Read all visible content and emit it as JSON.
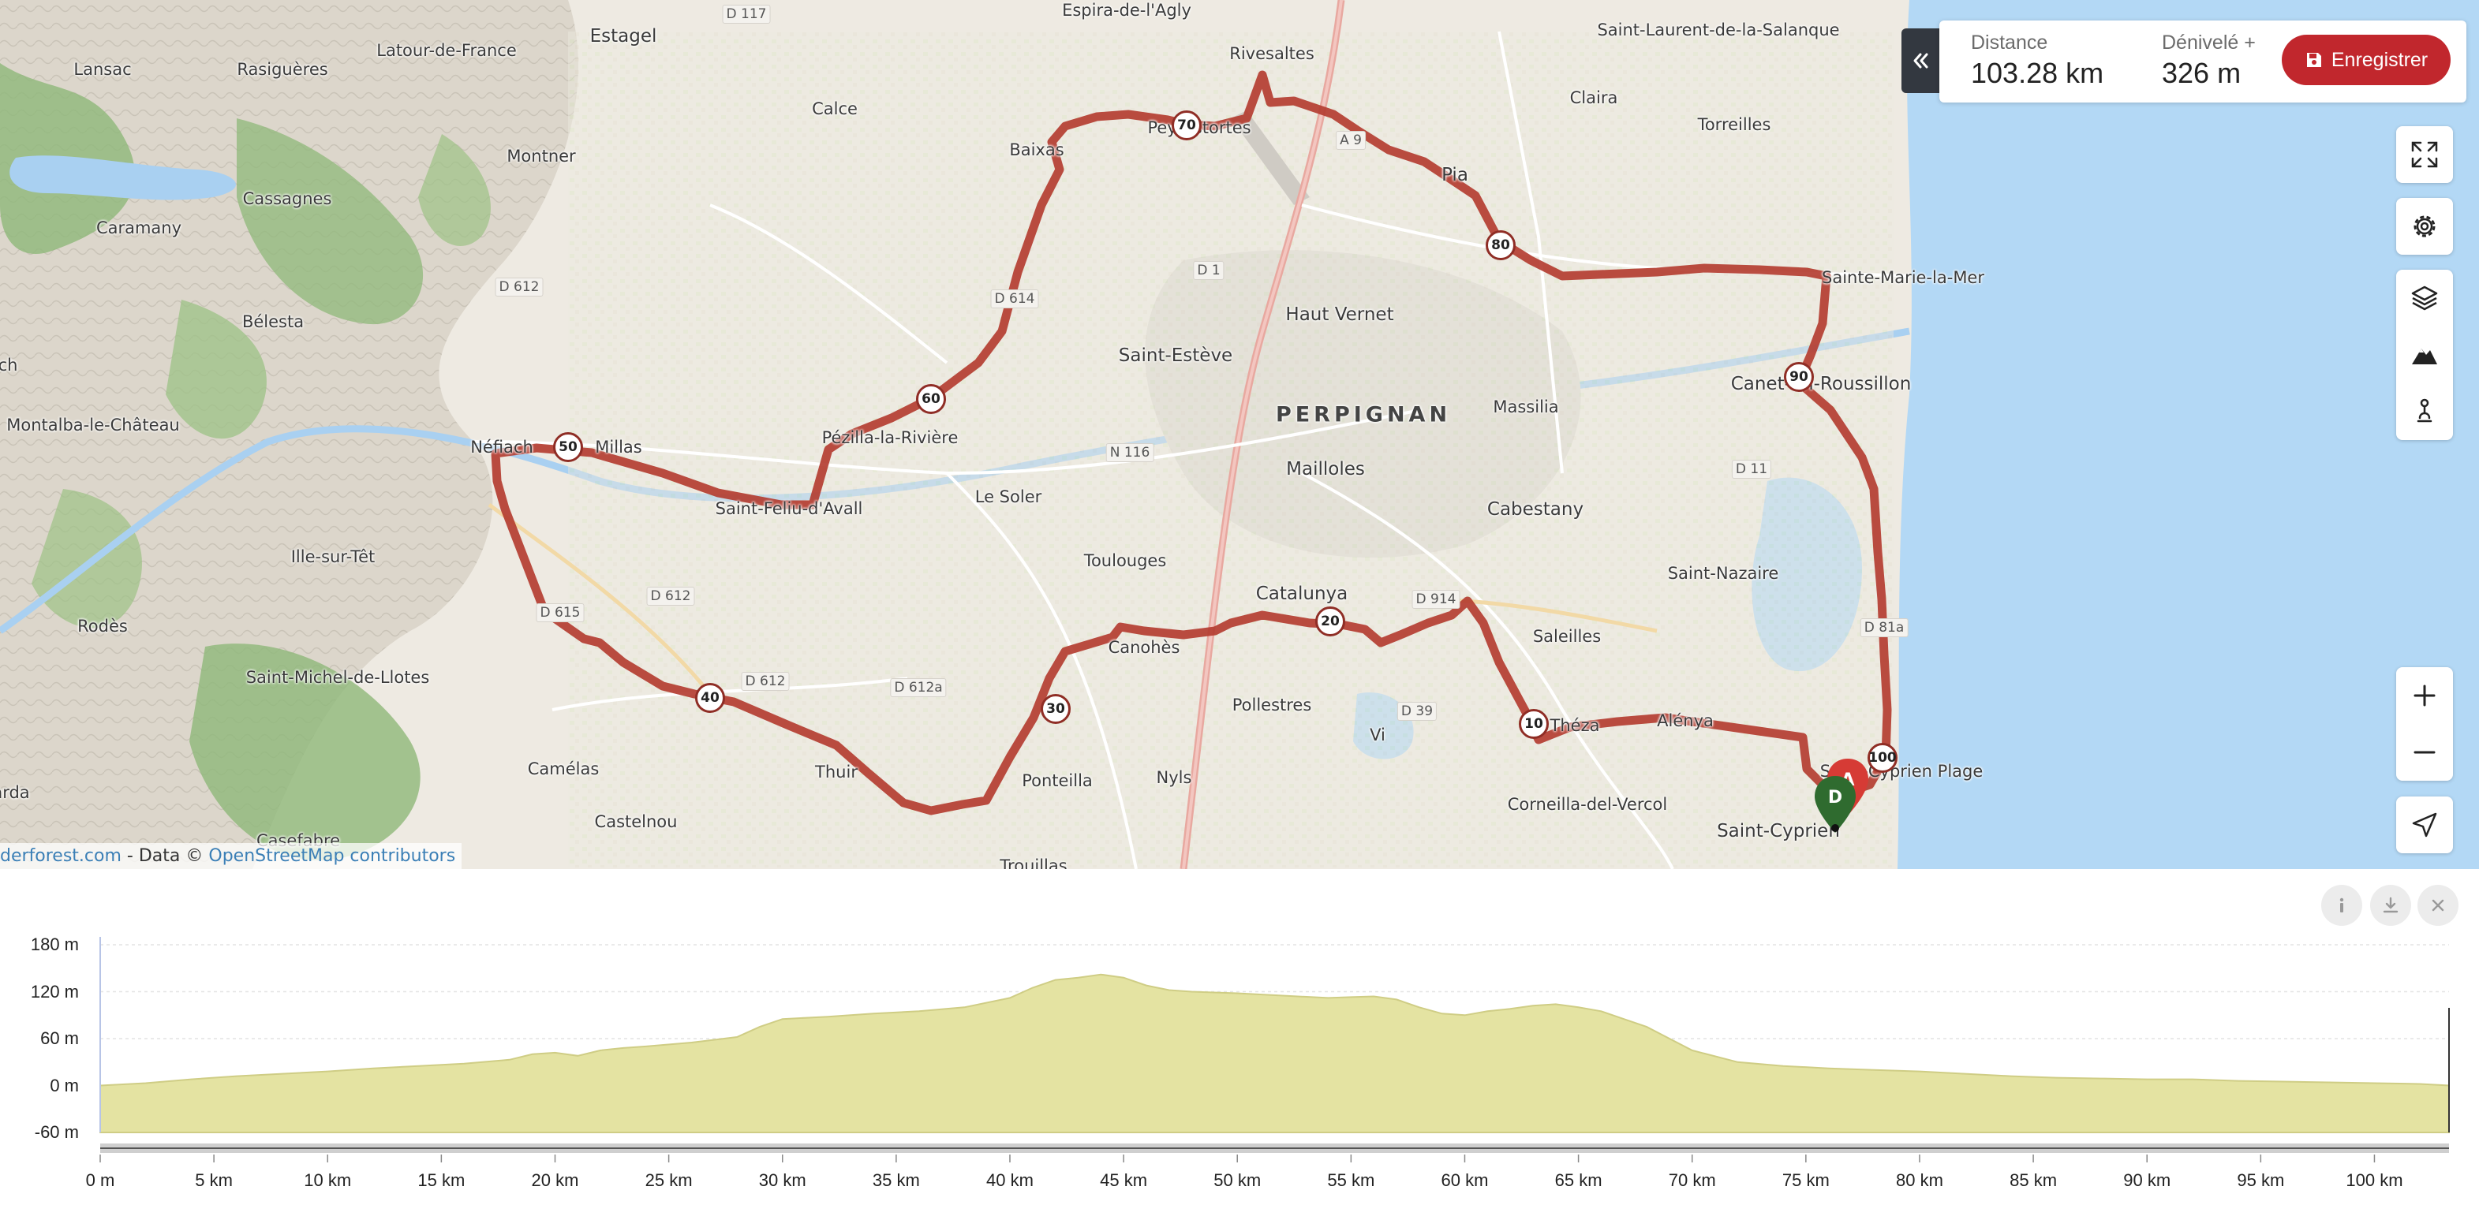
{
  "map": {
    "attribution_prefix": "derforest.com",
    "attribution_middle": " - Data © ",
    "attribution_link": "OpenStreetMap contributors",
    "places": [
      {
        "name": "Estagel",
        "cls": "mid"
      },
      {
        "name": "Latour-de-France",
        "cls": ""
      },
      {
        "name": "Lansac",
        "cls": ""
      },
      {
        "name": "Rasiguères",
        "cls": ""
      },
      {
        "name": "Montner",
        "cls": ""
      },
      {
        "name": "Calce",
        "cls": ""
      },
      {
        "name": "Espira-de-l'Agly",
        "cls": ""
      },
      {
        "name": "Rivesaltes",
        "cls": ""
      },
      {
        "name": "Saint-Laurent-de-la-Salanque",
        "cls": ""
      },
      {
        "name": "Claira",
        "cls": ""
      },
      {
        "name": "Torreilles",
        "cls": ""
      },
      {
        "name": "Cassagnes",
        "cls": ""
      },
      {
        "name": "Caramany",
        "cls": ""
      },
      {
        "name": "Baixas",
        "cls": ""
      },
      {
        "name": "Peyrestortes",
        "cls": ""
      },
      {
        "name": "Pia",
        "cls": "mid"
      },
      {
        "name": "Bélesta",
        "cls": ""
      },
      {
        "name": "Haut Vernet",
        "cls": "mid"
      },
      {
        "name": "Sainte-Marie-la-Mer",
        "cls": ""
      },
      {
        "name": "Saint-Estève",
        "cls": "mid"
      },
      {
        "name": "Canet-en-Roussillon",
        "cls": "mid"
      },
      {
        "name": "Massilia",
        "cls": ""
      },
      {
        "name": "PERPIGNAN",
        "cls": "city"
      },
      {
        "name": "Montalba-le-Château",
        "cls": ""
      },
      {
        "name": "Néfiach",
        "cls": ""
      },
      {
        "name": "Millas",
        "cls": ""
      },
      {
        "name": "Pézilla-la-Rivière",
        "cls": ""
      },
      {
        "name": "Mailloles",
        "cls": "mid"
      },
      {
        "name": "Saint-Feliu-d'Avall",
        "cls": ""
      },
      {
        "name": "Le Soler",
        "cls": ""
      },
      {
        "name": "Cabestany",
        "cls": "mid"
      },
      {
        "name": "Ille-sur-Têt",
        "cls": ""
      },
      {
        "name": "Toulouges",
        "cls": ""
      },
      {
        "name": "Saint-Nazaire",
        "cls": ""
      },
      {
        "name": "Catalunya",
        "cls": "mid"
      },
      {
        "name": "Rodès",
        "cls": ""
      },
      {
        "name": "Saleilles",
        "cls": ""
      },
      {
        "name": "Canohès",
        "cls": ""
      },
      {
        "name": "Saint-Michel-de-Llotes",
        "cls": ""
      },
      {
        "name": "Pollestres",
        "cls": ""
      },
      {
        "name": "Théza",
        "cls": ""
      },
      {
        "name": "Alénya",
        "cls": ""
      },
      {
        "name": "Vi",
        "cls": ""
      },
      {
        "name": "Camélas",
        "cls": ""
      },
      {
        "name": "Thuir",
        "cls": ""
      },
      {
        "name": "Ponteilla",
        "cls": ""
      },
      {
        "name": "Nyls",
        "cls": ""
      },
      {
        "name": "Saint-Cyprien Plage",
        "cls": ""
      },
      {
        "name": "Corneilla-del-Vercol",
        "cls": ""
      },
      {
        "name": "Saint-Cyprien",
        "cls": "mid"
      },
      {
        "name": "Castelnou",
        "cls": ""
      },
      {
        "name": "Casefabre",
        "cls": ""
      },
      {
        "name": "arda",
        "cls": ""
      },
      {
        "name": "ch",
        "cls": ""
      },
      {
        "name": "Trouillas",
        "cls": ""
      }
    ],
    "roads": [
      "D 117",
      "D 612",
      "A 9",
      "D 1",
      "D 614",
      "N 116",
      "D 612a",
      "D 612",
      "D 914",
      "D 11",
      "D 81a",
      "D 39",
      "D 615",
      "D 612"
    ],
    "km_markers": [
      "10",
      "20",
      "30",
      "40",
      "50",
      "60",
      "70",
      "80",
      "90",
      "100"
    ],
    "start_marker": "A",
    "end_marker": "D"
  },
  "stats": {
    "distance_label": "Distance",
    "distance_value": "103.28 km",
    "elevation_label": "Dénivelé +",
    "elevation_value": "326 m",
    "save_label": "Enregistrer"
  },
  "controls": [
    "fullscreen-icon",
    "gear-icon",
    "layers-icon",
    "mountain-icon",
    "hiker-icon",
    "plus-icon",
    "minus-icon",
    "locate-icon"
  ],
  "chart_data": {
    "type": "area",
    "title": "",
    "xlabel": "",
    "ylabel": "",
    "y_ticks": [
      "180 m",
      "120 m",
      "60 m",
      "0 m",
      "-60 m"
    ],
    "x_ticks": [
      "0 m",
      "5 km",
      "10 km",
      "15 km",
      "20 km",
      "25 km",
      "30 km",
      "35 km",
      "40 km",
      "45 km",
      "50 km",
      "55 km",
      "60 km",
      "65 km",
      "70 km",
      "75 km",
      "80 km",
      "85 km",
      "90 km",
      "95 km",
      "100 km"
    ],
    "ylim": [
      -60,
      180
    ],
    "xlim_km": [
      0,
      103.28
    ],
    "series": [
      {
        "x": [
          0,
          2,
          4,
          6,
          8,
          10,
          12,
          14,
          16,
          18,
          19,
          20,
          21,
          22,
          23,
          24,
          26,
          28,
          29,
          30,
          32,
          34,
          36,
          38,
          40,
          41,
          42,
          43,
          44,
          45,
          46,
          47,
          48,
          50,
          52,
          54,
          55,
          56,
          57,
          58,
          59,
          60,
          61,
          62,
          63,
          64,
          65,
          66,
          67,
          68,
          69,
          70,
          72,
          74,
          76,
          78,
          80,
          82,
          84,
          86,
          88,
          90,
          92,
          94,
          96,
          98,
          100,
          102,
          103.28
        ],
        "y": [
          0,
          3,
          8,
          12,
          15,
          18,
          22,
          25,
          28,
          33,
          40,
          42,
          38,
          45,
          48,
          50,
          55,
          62,
          75,
          85,
          88,
          92,
          95,
          100,
          112,
          125,
          135,
          138,
          142,
          138,
          128,
          122,
          120,
          118,
          115,
          112,
          113,
          114,
          110,
          100,
          92,
          90,
          95,
          98,
          102,
          104,
          100,
          95,
          85,
          75,
          60,
          45,
          30,
          25,
          22,
          20,
          18,
          15,
          12,
          10,
          9,
          8,
          8,
          6,
          5,
          4,
          3,
          2,
          0
        ]
      }
    ]
  }
}
